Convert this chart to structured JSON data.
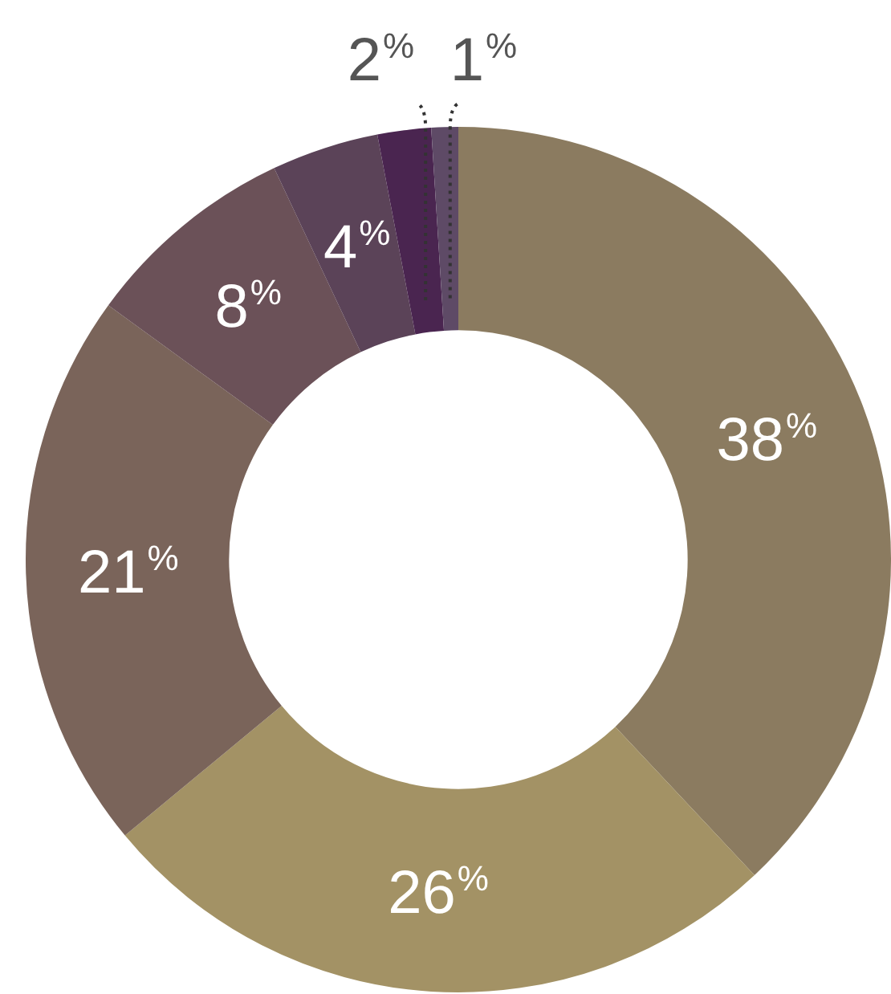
{
  "chart_data": {
    "type": "donut",
    "categories": [
      null,
      null,
      null,
      null,
      null,
      null,
      null
    ],
    "values": [
      38,
      26,
      21,
      8,
      4,
      2,
      1
    ],
    "colors": [
      "#8b7b60",
      "#a39265",
      "#7a645a",
      "#6b5158",
      "#5b4358",
      "#4a2550",
      "#5e4a66"
    ],
    "value_labels": [
      "38$^{%}$",
      "26$^{%}$",
      "21$^{%}$",
      "8$^{%}$",
      "4$^{%}$",
      "2$^{%}$",
      "1$^{%}$"
    ],
    "legend": false
  }
}
